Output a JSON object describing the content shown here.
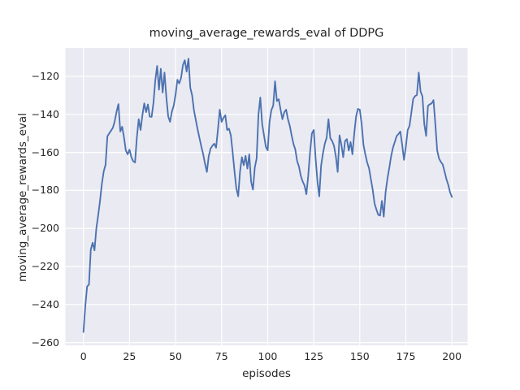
{
  "chart_data": {
    "type": "line",
    "title": "moving_average_rewards_eval of DDPG",
    "xlabel": "episodes",
    "ylabel": "moving_average_rewards_eval",
    "grid": true,
    "legend": false,
    "style": "seaborn-darkgrid",
    "axes_background": "#EAEAF2",
    "grid_color": "#FFFFFF",
    "text_color": "#262626",
    "line_color": "#4C72B0",
    "xlim": [
      -10,
      210.5
    ],
    "ylim": [
      -261.3,
      -105.1
    ],
    "xticks": [
      {
        "label": "0",
        "value": 0
      },
      {
        "label": "25",
        "value": 25
      },
      {
        "label": "50",
        "value": 50
      },
      {
        "label": "75",
        "value": 75
      },
      {
        "label": "100",
        "value": 100
      },
      {
        "label": "125",
        "value": 125
      },
      {
        "label": "150",
        "value": 150
      },
      {
        "label": "175",
        "value": 175
      },
      {
        "label": "200",
        "value": 200
      }
    ],
    "yticks": [
      {
        "label": "−120",
        "value": -120
      },
      {
        "label": "−140",
        "value": -140
      },
      {
        "label": "−160",
        "value": -160
      },
      {
        "label": "−180",
        "value": -180
      },
      {
        "label": "−200",
        "value": -200
      },
      {
        "label": "−220",
        "value": -220
      },
      {
        "label": "−240",
        "value": -240
      },
      {
        "label": "−260",
        "value": -260
      }
    ],
    "x_start": 0,
    "x_step": 1,
    "series": [
      {
        "name": "moving_average_rewards_eval",
        "color": "#4C72B0",
        "values": [
          -254.5,
          -241,
          -230.5,
          -229.5,
          -211,
          -207.5,
          -211.5,
          -200,
          -193,
          -185.5,
          -176.5,
          -170,
          -166.5,
          -151.5,
          -150,
          -148.5,
          -147,
          -143.5,
          -138.5,
          -134.6,
          -149,
          -146.5,
          -152,
          -159,
          -161,
          -158.5,
          -162.5,
          -164.6,
          -165.3,
          -152,
          -142.5,
          -148.2,
          -140.5,
          -134.2,
          -138.8,
          -134.8,
          -141.2,
          -141.3,
          -134,
          -122,
          -114.5,
          -127,
          -116,
          -128.5,
          -118,
          -131,
          -141,
          -143.9,
          -138.5,
          -135.4,
          -129.7,
          -121.8,
          -123.7,
          -120.8,
          -114,
          -111.5,
          -117.5,
          -110.7,
          -126,
          -130,
          -138,
          -143,
          -148,
          -152.5,
          -157,
          -161,
          -166,
          -170.3,
          -162,
          -158,
          -156.5,
          -155.4,
          -157.5,
          -148,
          -137.5,
          -143.9,
          -141.8,
          -140.4,
          -148.2,
          -147.5,
          -151,
          -160,
          -170,
          -179,
          -183.1,
          -170,
          -162.5,
          -166.7,
          -161.8,
          -168.5,
          -161,
          -175.3,
          -179.6,
          -168,
          -163.2,
          -140,
          -131.1,
          -145,
          -151,
          -157,
          -158.9,
          -144,
          -137.8,
          -135.4,
          -122.6,
          -133,
          -132,
          -137.5,
          -142.5,
          -138.9,
          -137.5,
          -142.5,
          -146,
          -151,
          -155.5,
          -158.5,
          -164.6,
          -167.5,
          -172.4,
          -175.3,
          -177.4,
          -182,
          -172.4,
          -160,
          -150,
          -148.2,
          -163,
          -175,
          -183.1,
          -167,
          -160.5,
          -155.5,
          -152.3,
          -142.5,
          -152.5,
          -154,
          -156.5,
          -162,
          -170.3,
          -151,
          -156,
          -162.5,
          -154,
          -153,
          -159,
          -154.5,
          -161,
          -150,
          -141,
          -137.1,
          -137.5,
          -145,
          -156,
          -161,
          -165.3,
          -168.2,
          -174,
          -179.6,
          -186.8,
          -190,
          -192.8,
          -193.2,
          -185.5,
          -193.8,
          -181,
          -173.8,
          -168.2,
          -162,
          -157.5,
          -154.5,
          -151.4,
          -150.3,
          -149,
          -156,
          -163.9,
          -157,
          -148.2,
          -146,
          -139,
          -131.8,
          -130.4,
          -129.8,
          -118,
          -128,
          -130.5,
          -145,
          -151.3,
          -135.5,
          -134.7,
          -134.2,
          -132.5,
          -145,
          -158.9,
          -163.2,
          -165,
          -166.3,
          -170,
          -174,
          -177,
          -181,
          -183.4
        ]
      }
    ]
  }
}
